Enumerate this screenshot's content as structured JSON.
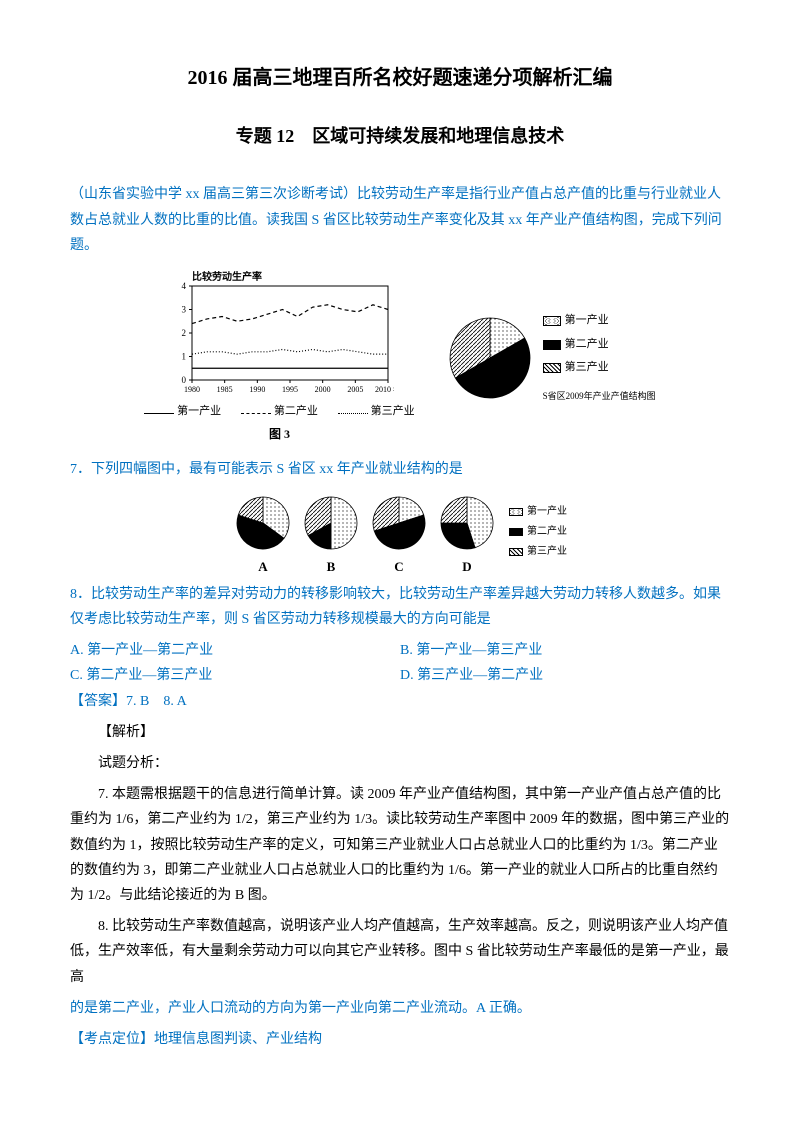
{
  "title_main": "2016 届高三地理百所名校好题速递分项解析汇编",
  "title_sub": "专题 12　区域可持续发展和地理信息技术",
  "intro": "（山东省实验中学 xx 届高三第三次诊断考试）比较劳动生产率是指行业产值占总产值的比重与行业就业人数占总就业人数的比重的比值。读我国 S 省区比较劳动生产率变化及其 xx 年产业产值结构图，完成下列问题。",
  "line_chart": {
    "title": "比较劳动生产率",
    "x_ticks": [
      "1980",
      "1985",
      "1990",
      "1995",
      "2000",
      "2005",
      "2010 年"
    ],
    "y_ticks": [
      "0",
      "1",
      "2",
      "3",
      "4"
    ],
    "series": [
      {
        "name": "第一产业",
        "dash": "solid",
        "y": [
          0.5,
          0.5,
          0.5,
          0.5,
          0.5,
          0.5,
          0.5,
          0.5,
          0.5,
          0.5,
          0.5,
          0.5,
          0.5,
          0.5
        ]
      },
      {
        "name": "第二产业",
        "dash": "dashed",
        "y": [
          2.4,
          2.6,
          2.7,
          2.5,
          2.6,
          2.8,
          3.0,
          2.7,
          3.1,
          3.2,
          3.0,
          2.9,
          3.2,
          3.0
        ]
      },
      {
        "name": "第三产业",
        "dash": "dotted",
        "y": [
          1.1,
          1.2,
          1.2,
          1.1,
          1.2,
          1.2,
          1.3,
          1.2,
          1.3,
          1.2,
          1.3,
          1.2,
          1.1,
          1.1
        ]
      }
    ],
    "ylim": [
      0,
      4
    ]
  },
  "pie_main": {
    "caption_below": "S省区2009年产业产值结构图",
    "slices": [
      {
        "name": "第一产业",
        "value": 0.167,
        "fill": "dots"
      },
      {
        "name": "第二产业",
        "value": 0.5,
        "fill": "solid"
      },
      {
        "name": "第三产业",
        "value": 0.333,
        "fill": "hatch"
      }
    ]
  },
  "figure_caption": "图 3",
  "q7": "7．下列四幅图中，最有可能表示 S 省区 xx 年产业就业结构的是",
  "pies_options": {
    "labels": [
      "A",
      "B",
      "C",
      "D"
    ],
    "items": [
      {
        "label": "A",
        "s1": 0.35,
        "s2": 0.45,
        "s3": 0.2
      },
      {
        "label": "B",
        "s1": 0.5,
        "s2": 0.17,
        "s3": 0.33
      },
      {
        "label": "C",
        "s1": 0.2,
        "s2": 0.5,
        "s3": 0.3
      },
      {
        "label": "D",
        "s1": 0.45,
        "s2": 0.3,
        "s3": 0.25
      }
    ],
    "legend": [
      "第一产业",
      "第二产业",
      "第三产业"
    ]
  },
  "q8": "8．比较劳动生产率的差异对劳动力的转移影响较大，比较劳动生产率差异越大劳动力转移人数越多。如果仅考虑比较劳动生产率，则 S 省区劳动力转移规模最大的方向可能是",
  "q8_opts": {
    "A": "A. 第一产业—第二产业",
    "B": "B. 第一产业—第三产业",
    "C": "C. 第二产业—第三产业",
    "D": "D. 第三产业—第二产业"
  },
  "answer": "【答案】7. B　8. A",
  "analysis_label": "【解析】",
  "analysis_intro": "试题分析：",
  "anal7": "7. 本题需根据题干的信息进行简单计算。读 2009 年产业产值结构图，其中第一产业产值占总产值的比重约为 1/6，第二产业约为 1/2，第三产业约为 1/3。读比较劳动生产率图中 2009 年的数据，图中第三产业的数值约为 1，按照比较劳动生产率的定义，可知第三产业就业人口占总就业人口的比重约为 1/3。第二产业的数值约为 3，即第二产业就业人口占总就业人口的比重约为 1/6。第一产业的就业人口所占的比重自然约为 1/2。与此结论接近的为 B 图。",
  "anal8_p1": "8. 比较劳动生产率数值越高，说明该产业人均产值越高，生产效率越高。反之，则说明该产业人均产值低，生产效率低，有大量剩余劳动力可以向其它产业转移。图中 S 省比较劳动生产率最低的是第一产业，最高",
  "anal8_p2": "的是第二产业，产业人口流动的方向为第一产业向第二产业流动。A 正确。",
  "kaodian": "【考点定位】地理信息图判读、产业结构",
  "colors": {
    "blue": "#0070c0",
    "black": "#000000",
    "solid_fill": "#000000"
  }
}
